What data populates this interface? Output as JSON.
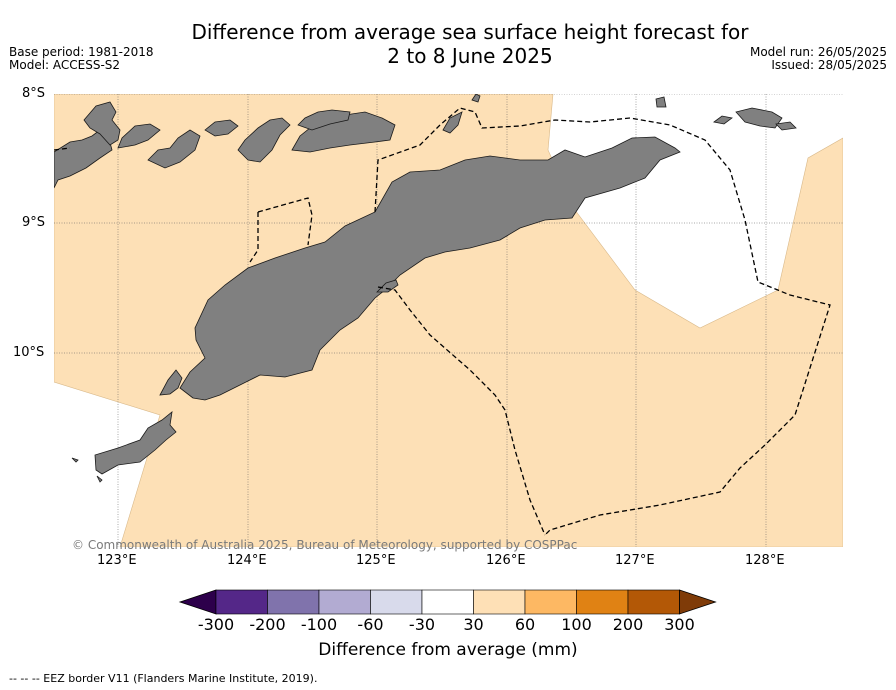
{
  "header": {
    "title_line1": "Difference from average sea surface height forecast for",
    "title_line2": "2 to 8 June 2025",
    "base_period": "Base period: 1981-2018",
    "model": "Model: ACCESS-S2",
    "model_run": "Model run: 26/05/2025",
    "issued": "Issued: 28/05/2025"
  },
  "map": {
    "lat_labels": [
      "8°S",
      "9°S",
      "10°S"
    ],
    "lon_labels": [
      "123°E",
      "124°E",
      "125°E",
      "126°E",
      "127°E",
      "128°E"
    ],
    "copyright": "© Commonwealth of Australia 2025, Bureau of Meteorology, supported by COSPPac",
    "colors": {
      "land": "#808080",
      "anomaly_30_60": "#fde0b6",
      "neutral": "#ffffff"
    }
  },
  "colorbar": {
    "ticks": [
      "-300",
      "-200",
      "-100",
      "-60",
      "-30",
      "30",
      "60",
      "100",
      "200",
      "300"
    ],
    "colors": [
      "#2d004b",
      "#542788",
      "#8073ac",
      "#b2abd2",
      "#d8daeb",
      "#ffffff",
      "#fee0b6",
      "#fdb863",
      "#e08214",
      "#b35806",
      "#7f3b08"
    ],
    "label": "Difference from average (mm)"
  },
  "legend": {
    "eez": "--  --  -- EEZ border V11 (Flanders Marine Institute, 2019)."
  }
}
